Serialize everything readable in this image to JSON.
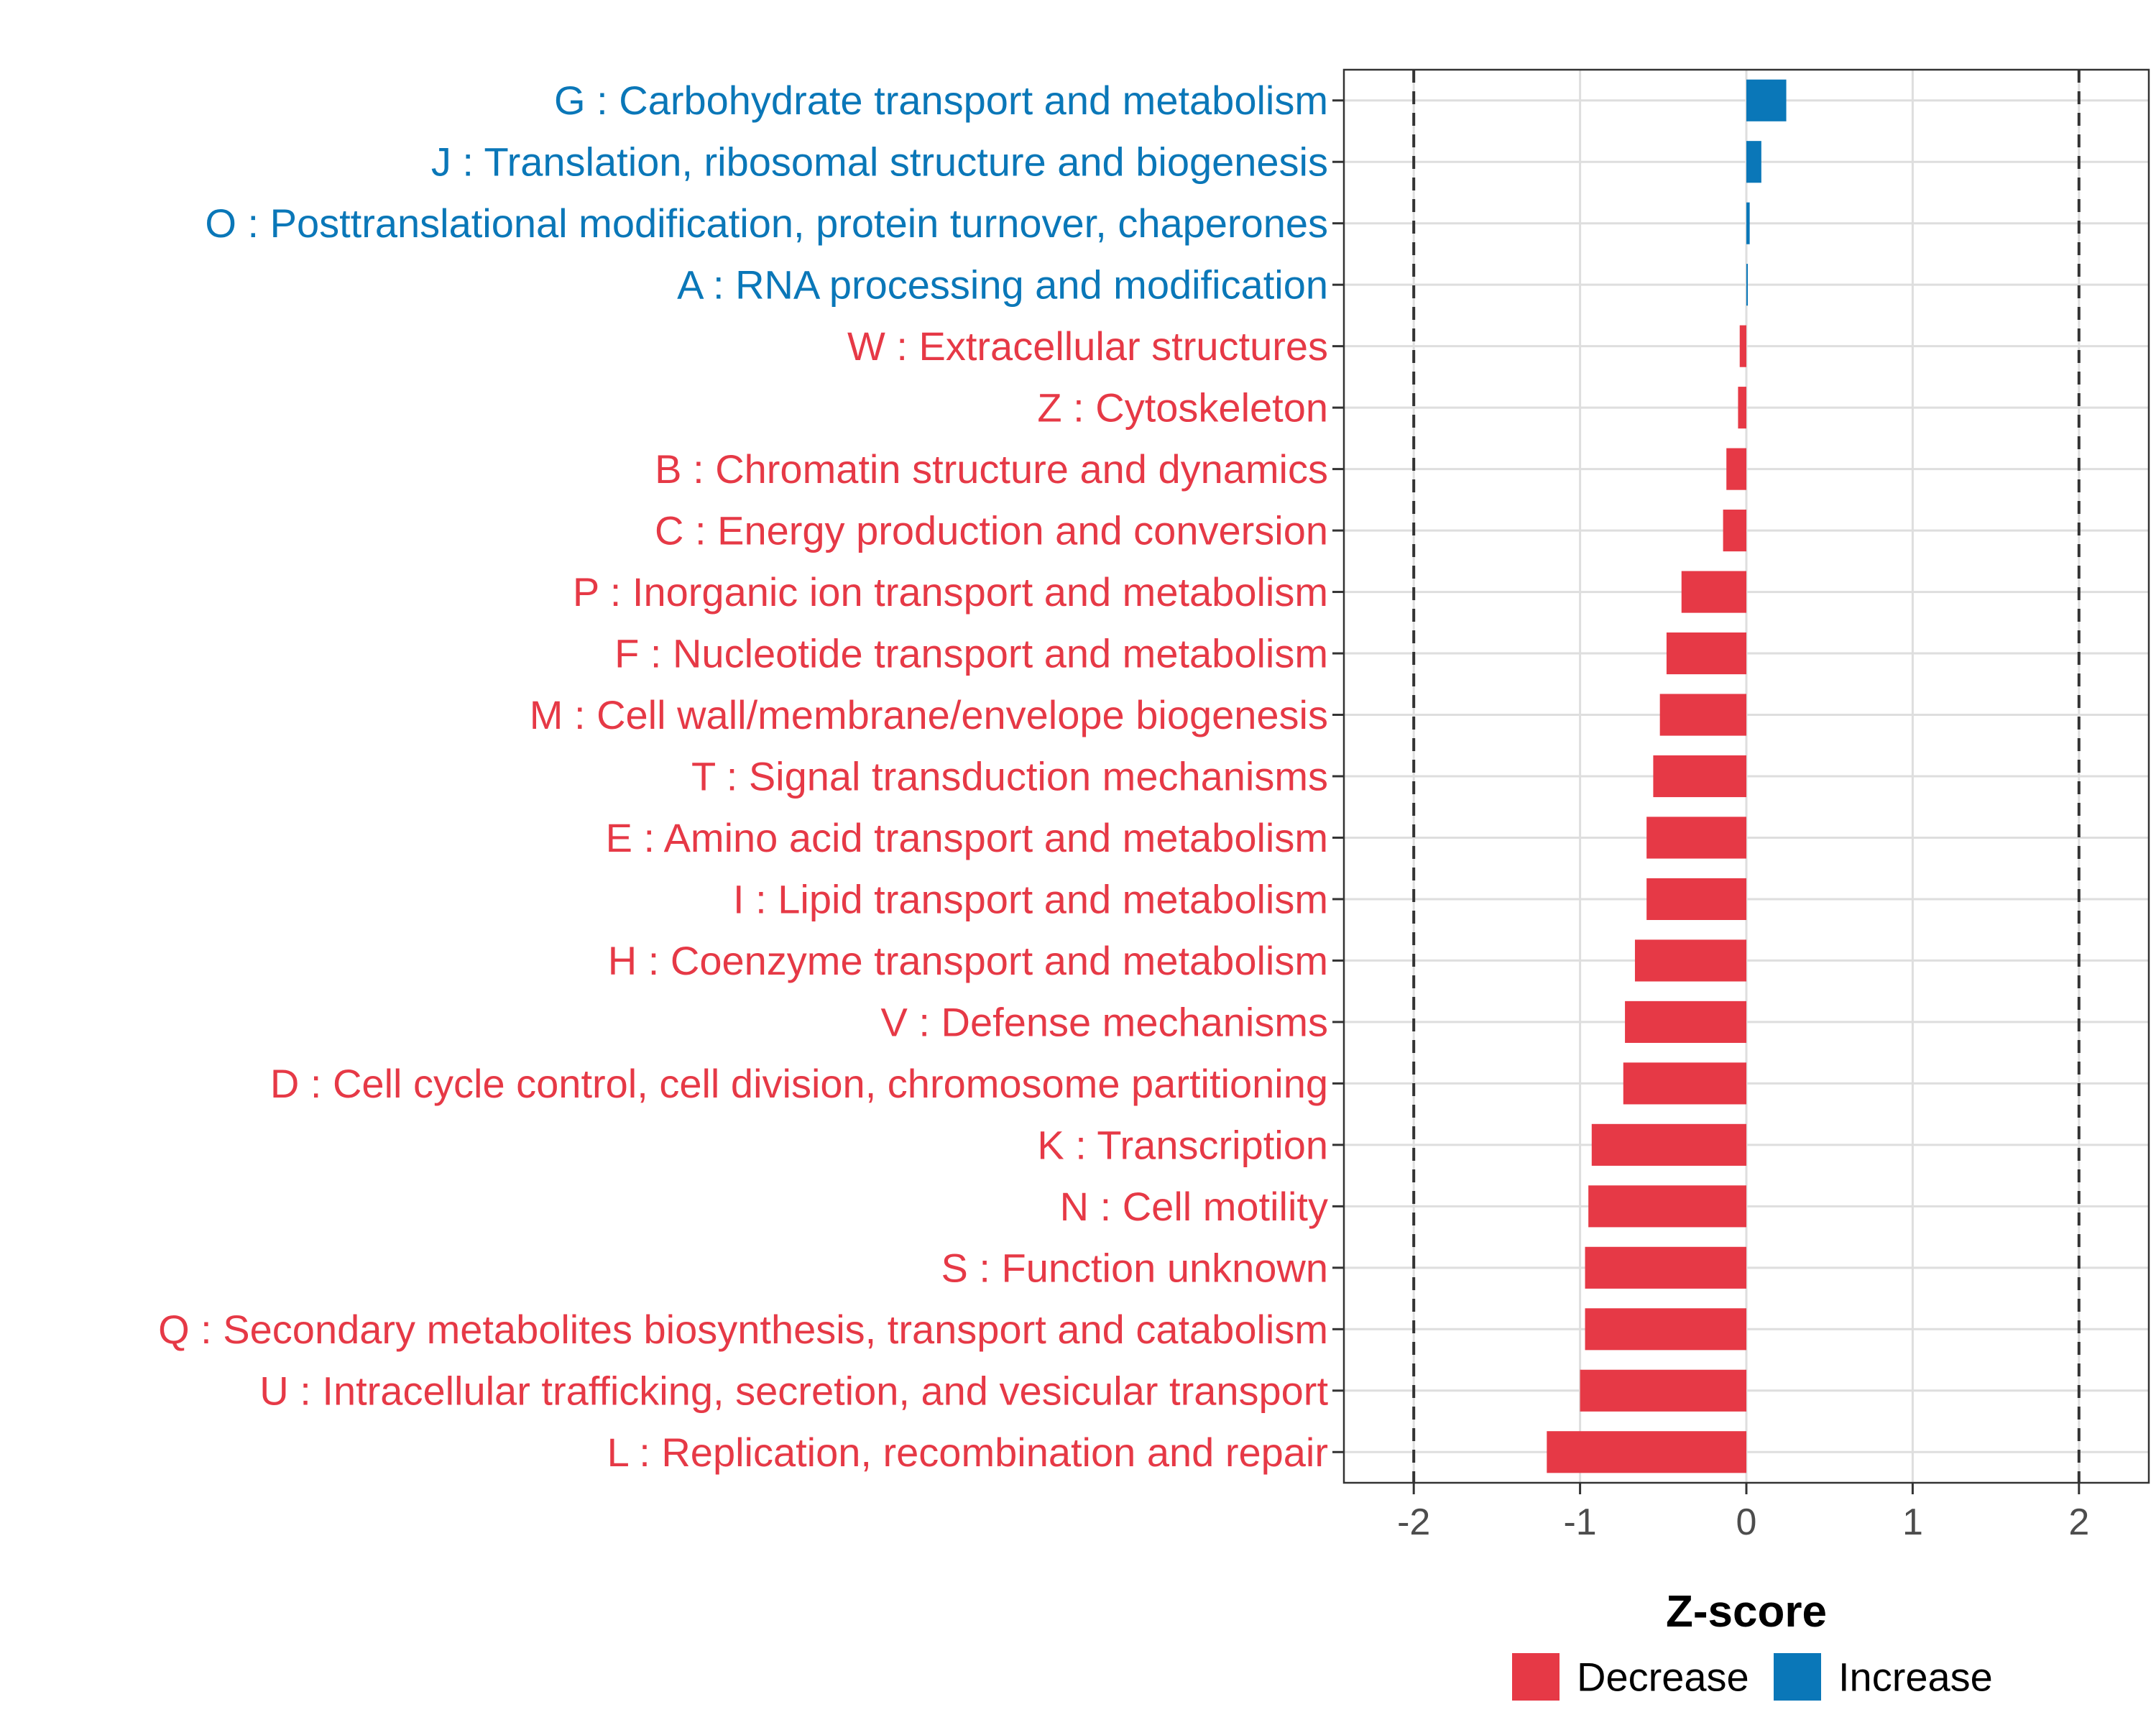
{
  "chart_data": {
    "type": "bar",
    "orientation": "horizontal",
    "xlabel": "Z-score",
    "ylabel": "",
    "xlim": [
      -2.42,
      2.42
    ],
    "xticks": [
      -2,
      -1,
      0,
      1,
      2
    ],
    "xtick_labels": [
      "-2",
      "-1",
      "0",
      "1",
      "2"
    ],
    "reference_lines": [
      -2,
      2
    ],
    "grid": true,
    "legend_position": "bottom",
    "colors": {
      "Decrease": "#e63946",
      "Increase": "#0a77b8"
    },
    "legend": [
      {
        "name": "Decrease",
        "color": "#e63946"
      },
      {
        "name": "Increase",
        "color": "#0a77b8"
      }
    ],
    "categories": [
      {
        "label": "G : Carbohydrate transport and metabolism",
        "value": 0.24,
        "group": "Increase"
      },
      {
        "label": "J : Translation, ribosomal structure and biogenesis",
        "value": 0.09,
        "group": "Increase"
      },
      {
        "label": "O : Posttranslational modification, protein turnover, chaperones",
        "value": 0.02,
        "group": "Increase"
      },
      {
        "label": "A : RNA processing and modification",
        "value": 0.005,
        "group": "Increase"
      },
      {
        "label": "W : Extracellular structures",
        "value": -0.04,
        "group": "Decrease"
      },
      {
        "label": "Z : Cytoskeleton",
        "value": -0.05,
        "group": "Decrease"
      },
      {
        "label": "B : Chromatin structure and dynamics",
        "value": -0.12,
        "group": "Decrease"
      },
      {
        "label": "C : Energy production and conversion",
        "value": -0.14,
        "group": "Decrease"
      },
      {
        "label": "P : Inorganic ion transport and metabolism",
        "value": -0.39,
        "group": "Decrease"
      },
      {
        "label": "F : Nucleotide transport and metabolism",
        "value": -0.48,
        "group": "Decrease"
      },
      {
        "label": "M : Cell wall/membrane/envelope biogenesis",
        "value": -0.52,
        "group": "Decrease"
      },
      {
        "label": "T : Signal transduction mechanisms",
        "value": -0.56,
        "group": "Decrease"
      },
      {
        "label": "E : Amino acid transport and metabolism",
        "value": -0.6,
        "group": "Decrease"
      },
      {
        "label": "I : Lipid transport and metabolism",
        "value": -0.6,
        "group": "Decrease"
      },
      {
        "label": "H : Coenzyme transport and metabolism",
        "value": -0.67,
        "group": "Decrease"
      },
      {
        "label": "V : Defense mechanisms",
        "value": -0.73,
        "group": "Decrease"
      },
      {
        "label": "D : Cell cycle control, cell division, chromosome partitioning",
        "value": -0.74,
        "group": "Decrease"
      },
      {
        "label": "K : Transcription",
        "value": -0.93,
        "group": "Decrease"
      },
      {
        "label": "N : Cell motility",
        "value": -0.95,
        "group": "Decrease"
      },
      {
        "label": "S : Function unknown",
        "value": -0.97,
        "group": "Decrease"
      },
      {
        "label": "Q : Secondary metabolites biosynthesis, transport and catabolism",
        "value": -0.97,
        "group": "Decrease"
      },
      {
        "label": "U : Intracellular trafficking, secretion, and vesicular transport",
        "value": -1.0,
        "group": "Decrease"
      },
      {
        "label": "L : Replication, recombination and repair",
        "value": -1.2,
        "group": "Decrease"
      }
    ]
  }
}
